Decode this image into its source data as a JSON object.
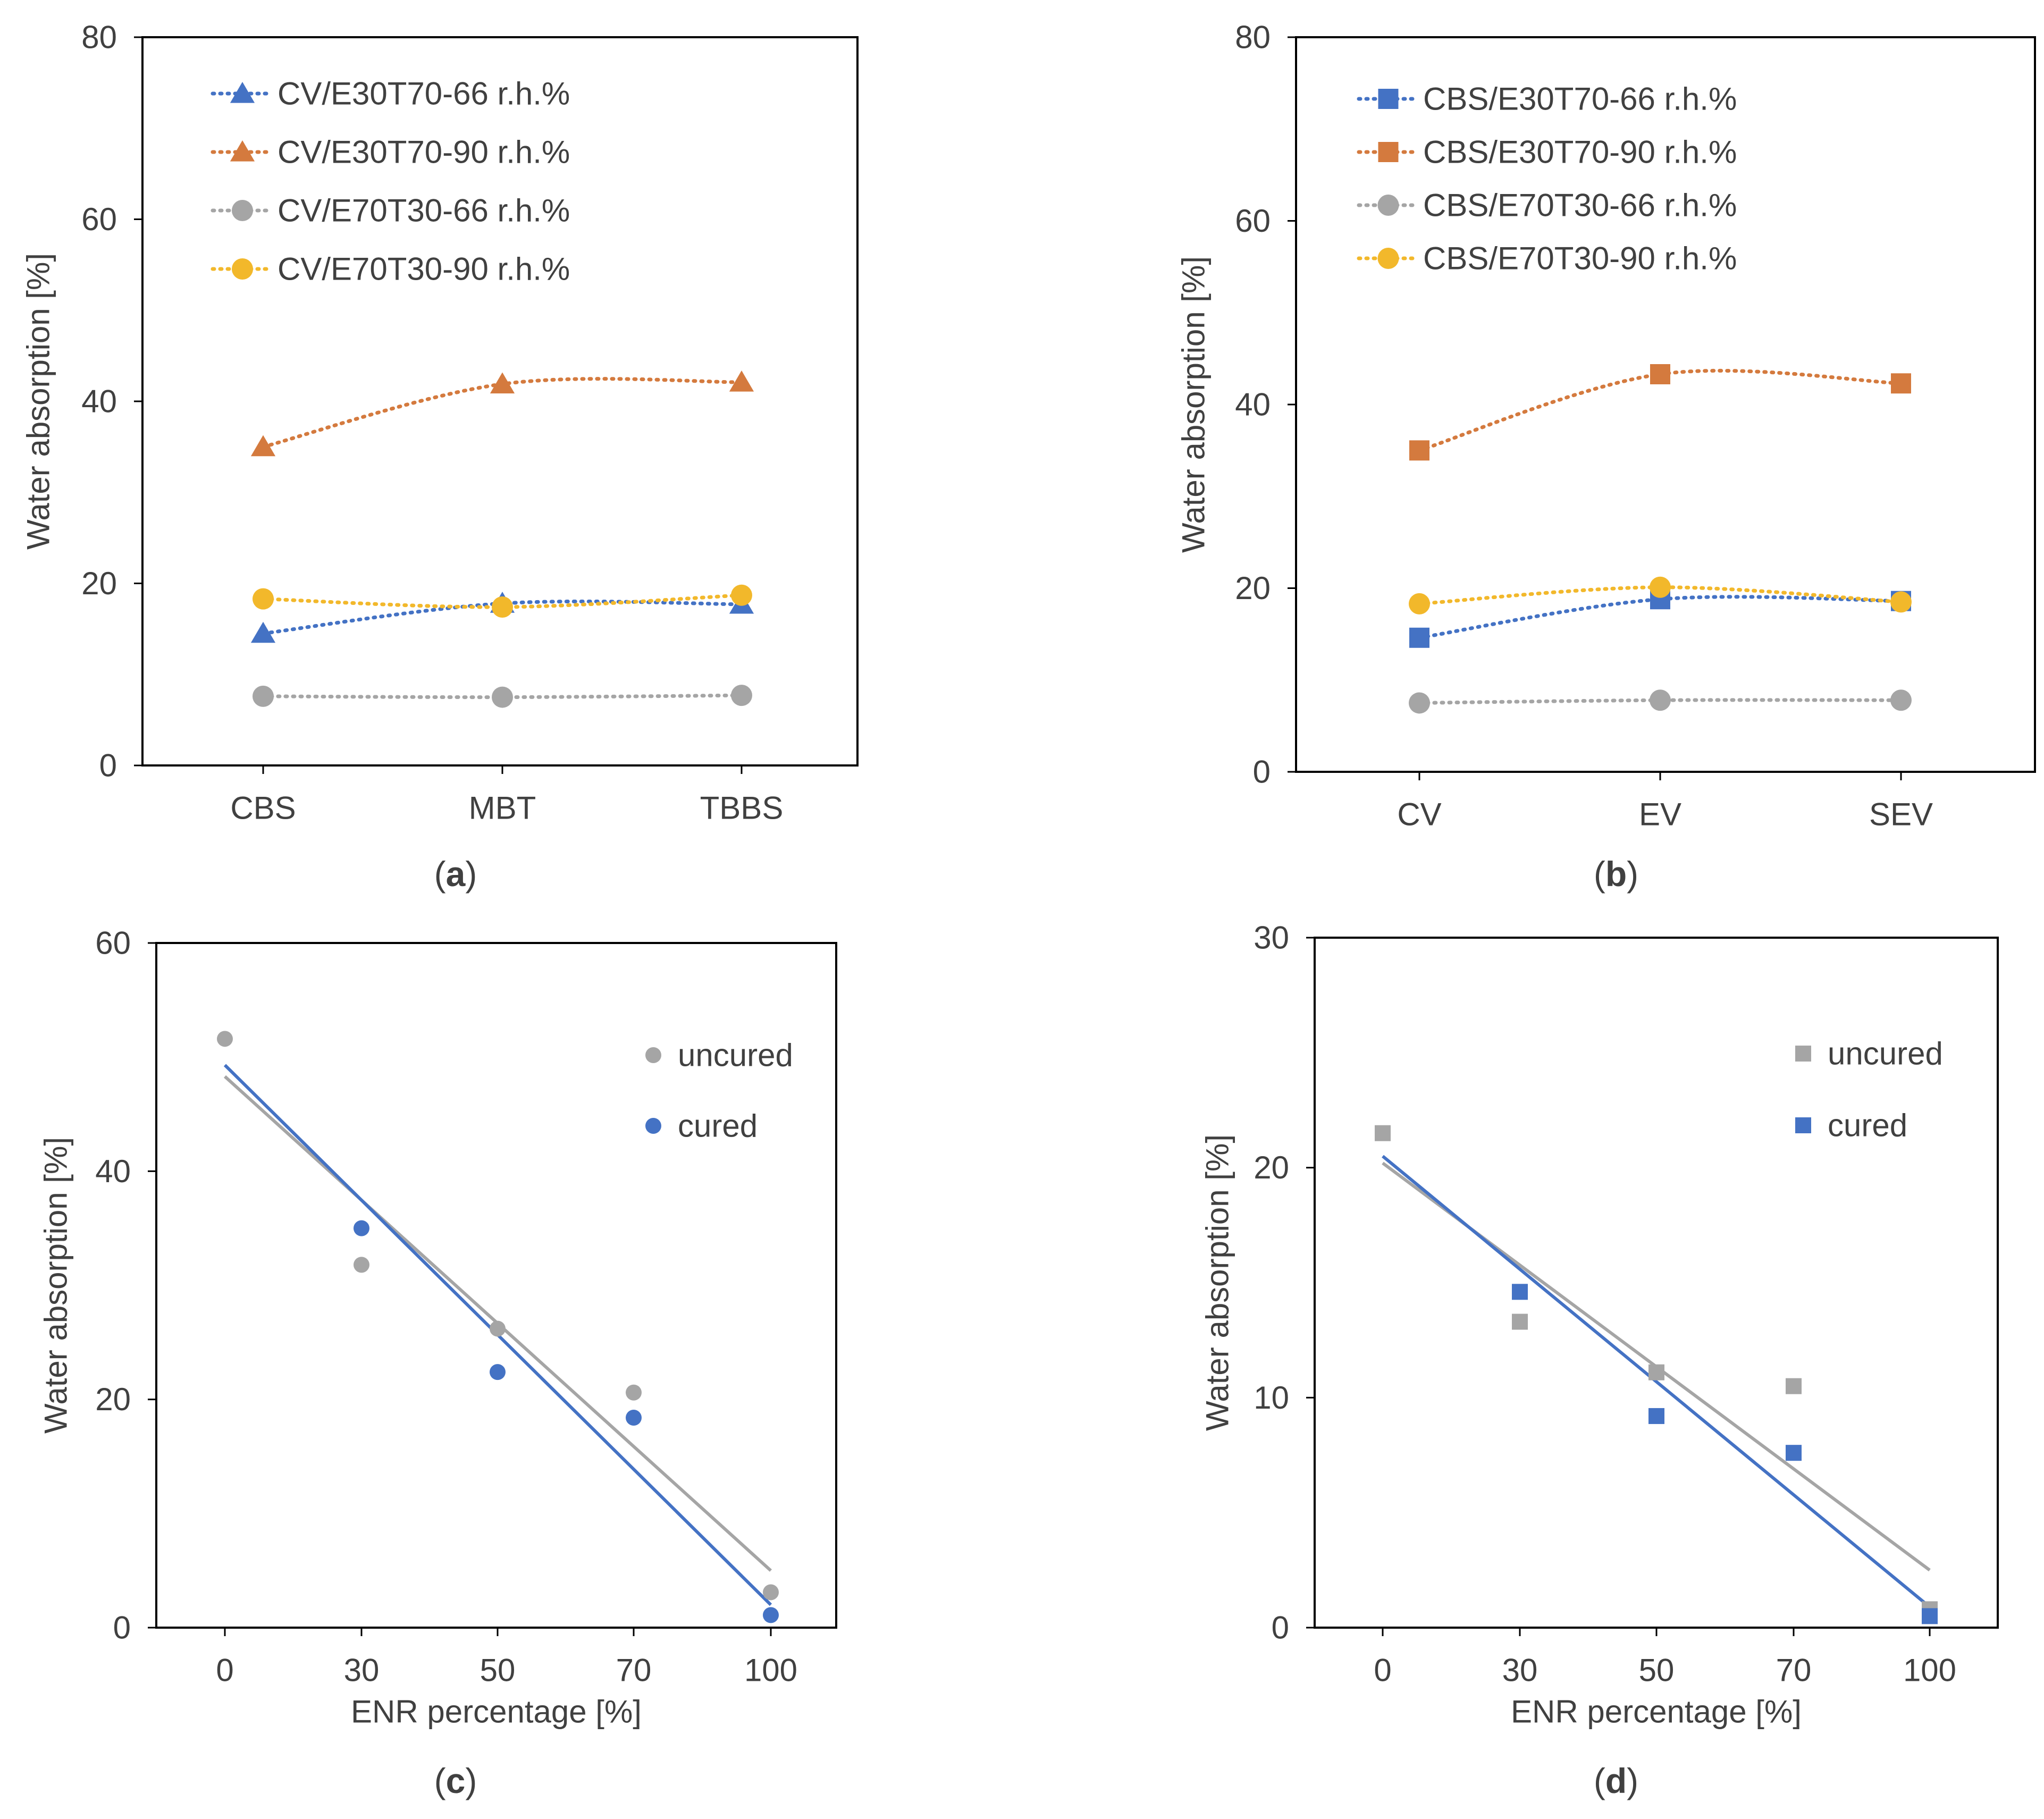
{
  "colors": {
    "blue": "#4472C4",
    "orange": "#D47A3E",
    "gray": "#A5A5A5",
    "yellow": "#F2B82B",
    "axis": "#000000",
    "text": "#404040"
  },
  "chart_data": [
    {
      "id": "a",
      "type": "line",
      "panel_label": "a",
      "ylabel": "Water absorption [%]",
      "xlabel": "",
      "categories": [
        "CBS",
        "MBT",
        "TBBS"
      ],
      "ylim": [
        0,
        80
      ],
      "yticks": [
        0,
        20,
        40,
        60,
        80
      ],
      "legend_position": "top-left",
      "series": [
        {
          "name": "CV/E30T70-66 r.h.%",
          "values": [
            14.5,
            17.8,
            17.7
          ],
          "color": "#4472C4",
          "marker": "triangle"
        },
        {
          "name": "CV/E30T70-90 r.h.%",
          "values": [
            35.0,
            41.9,
            42.1
          ],
          "color": "#D47A3E",
          "marker": "triangle"
        },
        {
          "name": "CV/E70T30-66 r.h.%",
          "values": [
            7.6,
            7.5,
            7.7
          ],
          "color": "#A5A5A5",
          "marker": "circle"
        },
        {
          "name": "CV/E70T30-90 r.h.%",
          "values": [
            18.3,
            17.4,
            18.7
          ],
          "color": "#F2B82B",
          "marker": "circle"
        }
      ]
    },
    {
      "id": "b",
      "type": "line",
      "panel_label": "b",
      "ylabel": "Water absorption [%]",
      "xlabel": "",
      "categories": [
        "CV",
        "EV",
        "SEV"
      ],
      "ylim": [
        0,
        80
      ],
      "yticks": [
        0,
        20,
        40,
        60,
        80
      ],
      "legend_position": "top-left",
      "series": [
        {
          "name": "CBS/E30T70-66 r.h.%",
          "values": [
            14.6,
            18.8,
            18.6
          ],
          "color": "#4472C4",
          "marker": "square"
        },
        {
          "name": "CBS/E30T70-90 r.h.%",
          "values": [
            35.0,
            43.3,
            42.3
          ],
          "color": "#D47A3E",
          "marker": "square"
        },
        {
          "name": "CBS/E70T30-66 r.h.%",
          "values": [
            7.5,
            7.8,
            7.8
          ],
          "color": "#A5A5A5",
          "marker": "circle"
        },
        {
          "name": "CBS/E70T30-90 r.h.%",
          "values": [
            18.3,
            20.1,
            18.5
          ],
          "color": "#F2B82B",
          "marker": "circle"
        }
      ]
    },
    {
      "id": "c",
      "type": "scatter",
      "panel_label": "c",
      "ylabel": "Water absorption [%]",
      "xlabel": "ENR percentage [%]",
      "categories": [
        "0",
        "30",
        "50",
        "70",
        "100"
      ],
      "ylim": [
        0,
        60
      ],
      "yticks": [
        0,
        20,
        40,
        60
      ],
      "legend_position": "top-right",
      "series": [
        {
          "name": "uncured",
          "values": [
            51.6,
            31.8,
            26.2,
            20.6,
            3.1
          ],
          "color": "#A5A5A5",
          "marker": "circle",
          "trendline": [
            48.3,
            5.0
          ]
        },
        {
          "name": "cured",
          "values": [
            null,
            35.0,
            22.4,
            18.4,
            1.1
          ],
          "color": "#4472C4",
          "marker": "circle",
          "trendline": [
            49.3,
            2.0
          ]
        }
      ]
    },
    {
      "id": "d",
      "type": "scatter",
      "panel_label": "d",
      "ylabel": "Water absorption [%]",
      "xlabel": "ENR percentage [%]",
      "categories": [
        "0",
        "30",
        "50",
        "70",
        "100"
      ],
      "ylim": [
        0,
        30
      ],
      "yticks": [
        0,
        10,
        20,
        30
      ],
      "legend_position": "top-right",
      "series": [
        {
          "name": "uncured",
          "values": [
            21.5,
            13.3,
            11.1,
            10.5,
            0.8
          ],
          "color": "#A5A5A5",
          "marker": "square",
          "trendline": [
            20.2,
            2.5
          ]
        },
        {
          "name": "cured",
          "values": [
            null,
            14.6,
            9.2,
            7.6,
            0.5
          ],
          "color": "#4472C4",
          "marker": "square",
          "trendline": [
            20.5,
            0.9
          ]
        }
      ]
    }
  ]
}
